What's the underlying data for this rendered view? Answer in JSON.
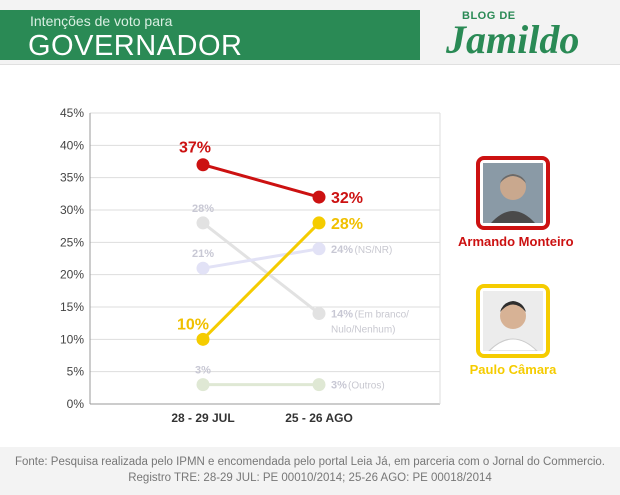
{
  "header": {
    "subtitle": "Intenções de voto para",
    "title": "GOVERNADOR"
  },
  "logo": {
    "line1": "BLOG DE",
    "line2": "Jamildo"
  },
  "chart_data": {
    "type": "line",
    "categories": [
      "28 - 29 JUL",
      "25 - 26 AGO"
    ],
    "yticks": [
      "0%",
      "5%",
      "10%",
      "15%",
      "20%",
      "25%",
      "30%",
      "35%",
      "40%",
      "45%"
    ],
    "ylim": [
      0,
      45
    ],
    "grid": true,
    "series": [
      {
        "name": "Armando Monteiro",
        "values": [
          37,
          32
        ],
        "labels": [
          "37%",
          "32%"
        ],
        "color": "#cc1111",
        "highlight": true,
        "end_label": ""
      },
      {
        "name": "Paulo Câmara",
        "values": [
          10,
          28
        ],
        "labels": [
          "10%",
          "28%"
        ],
        "color": "#f5cc00",
        "highlight": true,
        "end_label": ""
      },
      {
        "name": "",
        "values": [
          28,
          14
        ],
        "labels": [
          "28%",
          "14%"
        ],
        "color": "#e2e2e2",
        "highlight": false,
        "end_label": "(Em branco/ Nulo/Nenhum)"
      },
      {
        "name": "",
        "values": [
          21,
          24
        ],
        "labels": [
          "21%",
          "24%"
        ],
        "color": "#e2e2f6",
        "highlight": false,
        "end_label": "(NS/NR)"
      },
      {
        "name": "",
        "values": [
          3,
          3
        ],
        "labels": [
          "3%",
          "3%"
        ],
        "color": "#dfe8d4",
        "highlight": false,
        "end_label": "(Outros)"
      }
    ]
  },
  "candidates": [
    {
      "name": "Armando Monteiro",
      "color": "#cc1111",
      "icon": "person-photo-icon"
    },
    {
      "name": "Paulo Câmara",
      "color": "#f5cc00",
      "icon": "person-photo-icon"
    }
  ],
  "footer": {
    "line1": "Fonte: Pesquisa realizada pelo IPMN e encomendada pelo portal Leia Já, em parceria com o Jornal do Commercio.",
    "line2": "Registro TRE: 28-29 JUL: PE 00010/2014; 25-26 AGO: PE 00018/2014"
  }
}
